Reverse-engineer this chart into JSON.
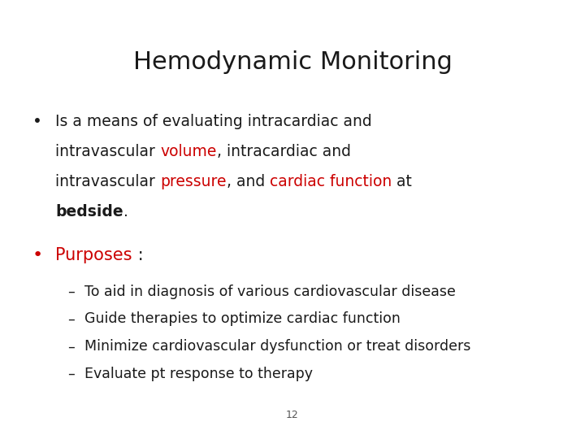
{
  "title": "Hemodynamic Monitoring",
  "background_color": "#ffffff",
  "title_fontsize": 22,
  "title_color": "#1a1a1a",
  "page_number": "12",
  "red_color": "#cc0000",
  "black_color": "#1a1a1a",
  "bullet_fontsize": 13.5,
  "bullet2_fontsize": 15,
  "sub_bullet_fontsize": 12.5,
  "line1": [
    {
      "text": "Is a means of evaluating intracardiac and",
      "color": "#1a1a1a",
      "bold": false
    }
  ],
  "line2": [
    {
      "text": "intravascular ",
      "color": "#1a1a1a",
      "bold": false
    },
    {
      "text": "volume",
      "color": "#cc0000",
      "bold": false
    },
    {
      "text": ", intracardiac and",
      "color": "#1a1a1a",
      "bold": false
    }
  ],
  "line3": [
    {
      "text": "intravascular ",
      "color": "#1a1a1a",
      "bold": false
    },
    {
      "text": "pressure",
      "color": "#cc0000",
      "bold": false
    },
    {
      "text": ", and ",
      "color": "#1a1a1a",
      "bold": false
    },
    {
      "text": "cardiac function",
      "color": "#cc0000",
      "bold": false
    },
    {
      "text": " at",
      "color": "#1a1a1a",
      "bold": false
    }
  ],
  "line4": [
    {
      "text": "bedside",
      "color": "#1a1a1a",
      "bold": true
    },
    {
      "text": ".",
      "color": "#1a1a1a",
      "bold": false
    }
  ],
  "purposes_line": [
    {
      "text": "Purposes",
      "color": "#cc0000",
      "bold": false
    },
    {
      "text": " :",
      "color": "#1a1a1a",
      "bold": false
    }
  ],
  "sub_bullets": [
    "To aid in diagnosis of various cardiovascular disease",
    "Guide therapies to optimize cardiac function",
    "Minimize cardiovascular dysfunction or treat disorders",
    "Evaluate pt response to therapy"
  ]
}
